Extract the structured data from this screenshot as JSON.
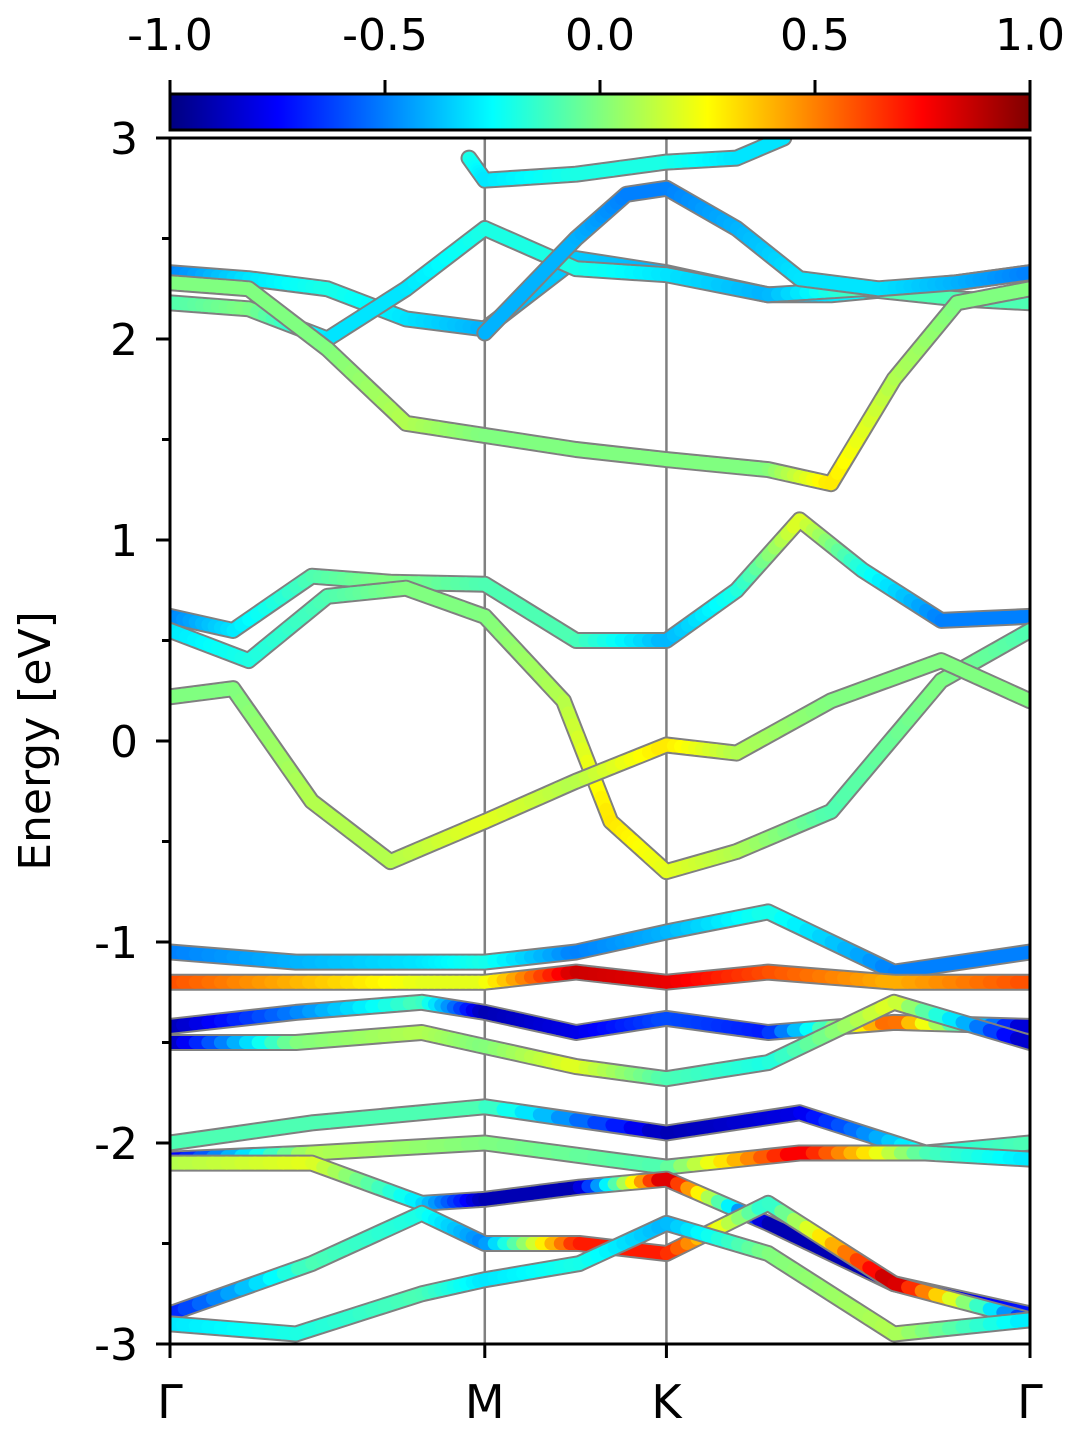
{
  "chart_data": {
    "type": "line",
    "title": "",
    "xlabel": "",
    "ylabel": "Energy [eV]",
    "ylim": [
      -3,
      3
    ],
    "y_ticks": [
      "-3",
      "-2",
      "-1",
      "0",
      "1",
      "2",
      "3"
    ],
    "x_ticks": [
      {
        "label": "Γ",
        "k": 0.0
      },
      {
        "label": "M",
        "k": 1.0
      },
      {
        "label": "K",
        "k": 1.577
      },
      {
        "label": "Γ",
        "k": 2.732
      }
    ],
    "colorbar": {
      "ticks": [
        "-1.0",
        "-0.5",
        "0.0",
        "0.5",
        "1.0"
      ],
      "range": [
        -1,
        1
      ],
      "colormap": "jet"
    },
    "bands": [
      {
        "k": [
          0,
          0.25,
          0.5,
          0.75,
          1.0,
          1.29,
          1.577,
          1.9,
          2.1,
          2.3,
          2.5,
          2.732
        ],
        "energy": [
          2.33,
          2.3,
          2.25,
          2.1,
          2.05,
          2.4,
          2.33,
          2.22,
          2.22,
          2.25,
          2.28,
          2.33
        ],
        "weight": [
          -0.5,
          -0.3,
          -0.2,
          -0.3,
          -0.4,
          -0.35,
          -0.4,
          -0.5,
          -0.3,
          -0.2,
          -0.4,
          -0.5
        ]
      },
      {
        "k": [
          0,
          0.25,
          0.5,
          0.75,
          1.0,
          1.29,
          1.577,
          1.9,
          2.2,
          2.5,
          2.732
        ],
        "energy": [
          2.18,
          2.15,
          2.0,
          2.25,
          2.55,
          2.35,
          2.32,
          2.22,
          2.25,
          2.2,
          2.18
        ],
        "weight": [
          -0.1,
          0.0,
          -0.3,
          -0.3,
          -0.2,
          -0.2,
          -0.3,
          -0.4,
          -0.1,
          -0.1,
          -0.1
        ]
      },
      {
        "k": [
          0,
          0.25,
          0.5,
          0.75,
          1.0,
          1.29,
          1.577,
          1.9,
          2.1,
          2.3,
          2.5,
          2.732
        ],
        "energy": [
          2.28,
          2.25,
          1.95,
          1.58,
          1.52,
          1.45,
          1.4,
          1.35,
          1.28,
          1.8,
          2.18,
          2.25
        ],
        "weight": [
          0.0,
          0.0,
          0.0,
          0.1,
          0.0,
          0.0,
          0.0,
          0.0,
          0.3,
          0.1,
          0.0,
          0.0
        ]
      },
      {
        "k": [
          0.95,
          1.0,
          1.29,
          1.577,
          1.8,
          1.95
        ],
        "energy": [
          2.9,
          2.79,
          2.82,
          2.88,
          2.9,
          3.0
        ],
        "weight": [
          -0.2,
          -0.3,
          -0.2,
          -0.2,
          -0.3,
          -0.3
        ]
      },
      {
        "k": [
          1.0,
          1.29,
          1.45,
          1.577,
          1.8,
          2.0,
          2.25,
          2.5,
          2.732
        ],
        "energy": [
          2.03,
          2.5,
          2.72,
          2.75,
          2.55,
          2.3,
          2.25,
          2.28,
          2.33
        ],
        "weight": [
          -0.4,
          -0.4,
          -0.5,
          -0.5,
          -0.4,
          -0.3,
          -0.3,
          -0.4,
          -0.5
        ]
      },
      {
        "k": [
          0,
          0.2,
          0.45,
          0.7,
          1.0,
          1.29,
          1.577,
          1.8,
          2.0,
          2.2,
          2.45,
          2.732
        ],
        "energy": [
          0.62,
          0.55,
          0.82,
          0.79,
          0.78,
          0.5,
          0.5,
          0.75,
          1.1,
          0.85,
          0.6,
          0.62
        ],
        "weight": [
          -0.5,
          -0.3,
          -0.1,
          0.0,
          -0.1,
          -0.1,
          -0.4,
          -0.2,
          0.2,
          -0.2,
          -0.5,
          -0.5
        ]
      },
      {
        "k": [
          0,
          0.25,
          0.5,
          0.75,
          1.0,
          1.25,
          1.4,
          1.577,
          1.8,
          2.1,
          2.45,
          2.732
        ],
        "energy": [
          0.55,
          0.4,
          0.72,
          0.76,
          0.62,
          0.2,
          -0.4,
          -0.65,
          -0.55,
          -0.35,
          0.3,
          0.55
        ],
        "weight": [
          -0.3,
          -0.2,
          -0.1,
          0.0,
          0.0,
          0.1,
          0.3,
          0.2,
          0.1,
          -0.1,
          0.0,
          -0.1
        ]
      },
      {
        "k": [
          0,
          0.2,
          0.45,
          0.7,
          1.0,
          1.29,
          1.577,
          1.8,
          2.1,
          2.45,
          2.732
        ],
        "energy": [
          0.22,
          0.26,
          -0.3,
          -0.6,
          -0.4,
          -0.2,
          -0.02,
          -0.06,
          0.2,
          0.4,
          0.2
        ],
        "weight": [
          0.0,
          0.0,
          0.1,
          0.1,
          0.2,
          0.1,
          0.3,
          0.1,
          0.0,
          0.0,
          0.0
        ]
      },
      {
        "k": [
          0,
          0.4,
          0.8,
          1.0,
          1.29,
          1.577,
          1.9,
          2.3,
          2.732
        ],
        "energy": [
          -1.05,
          -1.1,
          -1.1,
          -1.1,
          -1.05,
          -0.95,
          -0.85,
          -1.15,
          -1.05
        ],
        "weight": [
          -0.5,
          -0.4,
          -0.3,
          -0.2,
          -0.5,
          -0.4,
          -0.2,
          -0.5,
          -0.5
        ]
      },
      {
        "k": [
          0,
          0.4,
          0.8,
          1.0,
          1.29,
          1.577,
          1.9,
          2.3,
          2.732
        ],
        "energy": [
          -1.2,
          -1.2,
          -1.2,
          -1.2,
          -1.15,
          -1.2,
          -1.15,
          -1.2,
          -1.2
        ],
        "weight": [
          0.6,
          0.4,
          0.2,
          0.2,
          0.85,
          0.8,
          0.6,
          0.4,
          0.6
        ]
      },
      {
        "k": [
          0,
          0.4,
          0.8,
          1.0,
          1.29,
          1.577,
          1.9,
          2.3,
          2.732
        ],
        "energy": [
          -1.42,
          -1.35,
          -1.3,
          -1.35,
          -1.45,
          -1.38,
          -1.45,
          -1.4,
          -1.42
        ],
        "weight": [
          -0.9,
          -0.5,
          -0.1,
          -0.9,
          -0.8,
          -0.6,
          -0.7,
          0.6,
          -0.9
        ]
      },
      {
        "k": [
          0,
          0.4,
          0.8,
          1.0,
          1.29,
          1.577,
          1.9,
          2.3,
          2.732
        ],
        "energy": [
          -1.5,
          -1.5,
          -1.45,
          -1.52,
          -1.62,
          -1.68,
          -1.6,
          -1.3,
          -1.5
        ],
        "weight": [
          -0.9,
          0.0,
          0.1,
          0.0,
          0.2,
          -0.1,
          -0.2,
          0.2,
          -0.9
        ]
      },
      {
        "k": [
          0,
          0.45,
          1.0,
          1.577,
          2.0,
          2.4,
          2.732
        ],
        "energy": [
          -2.0,
          -1.9,
          -1.82,
          -1.95,
          -1.85,
          -2.05,
          -2.0
        ],
        "weight": [
          -0.1,
          -0.1,
          -0.1,
          -0.9,
          -0.8,
          -0.2,
          -0.1
        ]
      },
      {
        "k": [
          0,
          0.45,
          1.0,
          1.577,
          2.0,
          2.4,
          2.732
        ],
        "energy": [
          -2.08,
          -2.05,
          -2.0,
          -2.12,
          -2.05,
          -2.05,
          -2.08
        ],
        "weight": [
          -0.8,
          0.1,
          0.0,
          -0.1,
          0.8,
          -0.1,
          -0.3
        ]
      },
      {
        "k": [
          0,
          0.45,
          0.8,
          1.0,
          1.3,
          1.577,
          1.9,
          2.3,
          2.732
        ],
        "energy": [
          -2.1,
          -2.1,
          -2.3,
          -2.28,
          -2.22,
          -2.18,
          -2.4,
          -2.7,
          -2.85
        ],
        "weight": [
          0.1,
          0.2,
          -0.3,
          -0.9,
          -0.9,
          0.9,
          -0.9,
          -0.9,
          -0.7
        ]
      },
      {
        "k": [
          0,
          0.45,
          0.8,
          1.0,
          1.3,
          1.577,
          1.9,
          2.3,
          2.732
        ],
        "energy": [
          -2.85,
          -2.6,
          -2.35,
          -2.5,
          -2.5,
          -2.55,
          -2.3,
          -2.7,
          -2.88
        ],
        "weight": [
          -0.7,
          -0.1,
          -0.2,
          -0.5,
          0.7,
          0.7,
          -0.2,
          0.9,
          -0.7
        ]
      },
      {
        "k": [
          0,
          0.4,
          0.8,
          1.0,
          1.3,
          1.577,
          1.9,
          2.3,
          2.732
        ],
        "energy": [
          -2.9,
          -2.95,
          -2.75,
          -2.68,
          -2.6,
          -2.4,
          -2.55,
          -2.95,
          -2.88
        ],
        "weight": [
          -0.3,
          -0.2,
          -0.1,
          -0.3,
          -0.2,
          -0.4,
          0.0,
          0.1,
          -0.3
        ]
      }
    ]
  }
}
